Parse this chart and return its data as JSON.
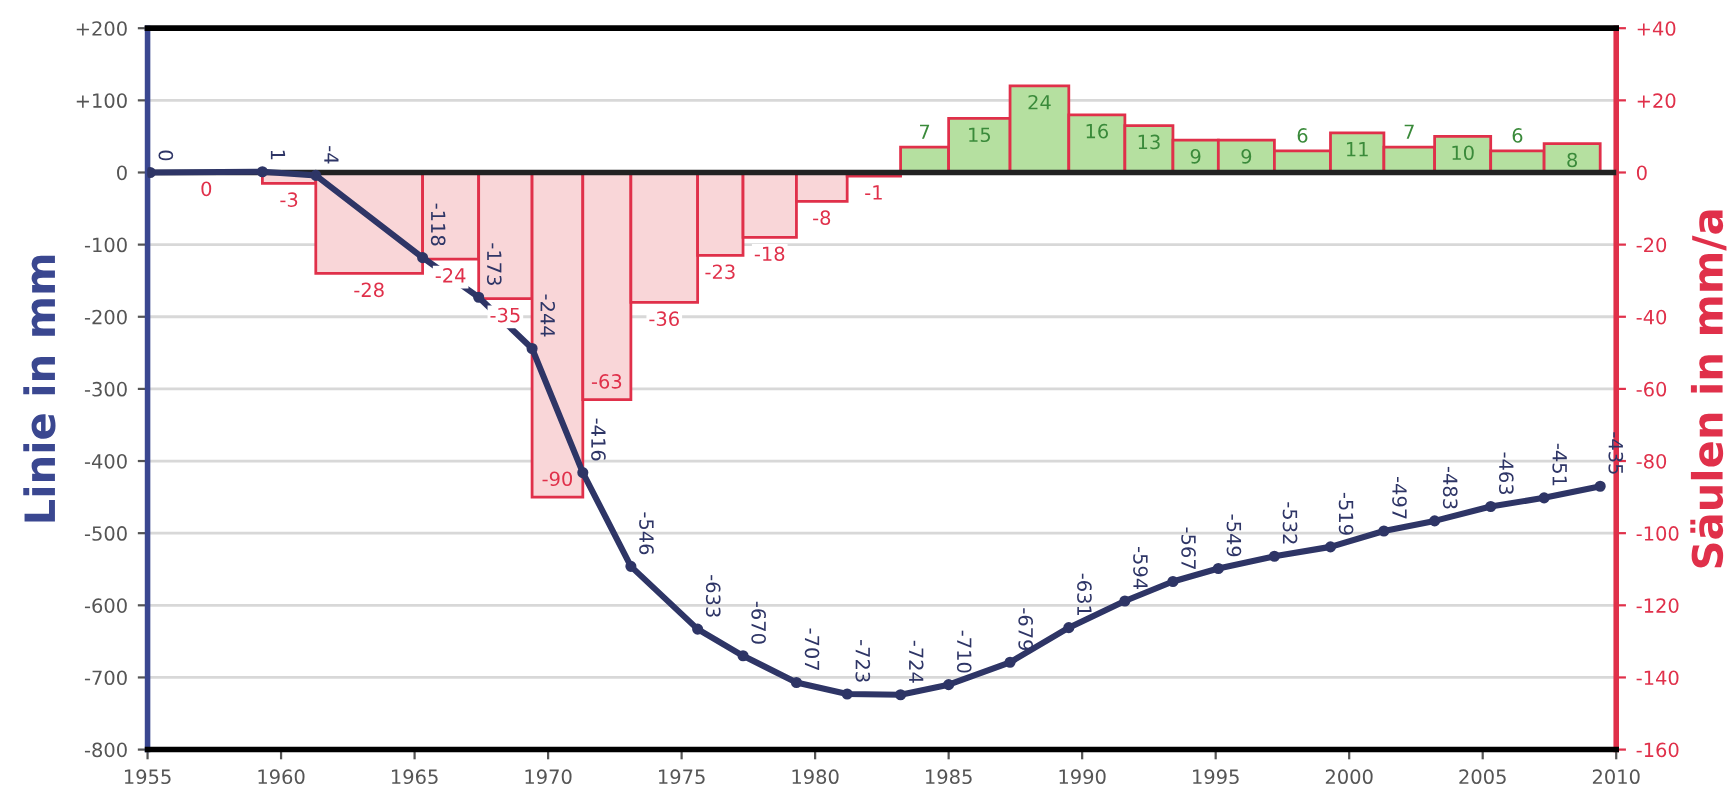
{
  "chart_data": {
    "type": "line",
    "ylabel": "Linie in mm",
    "y2label": "Säulen in mm/a",
    "xlim": [
      1955,
      2010
    ],
    "xticks": [
      1955,
      1960,
      1965,
      1970,
      1975,
      1980,
      1985,
      1990,
      1995,
      2000,
      2005,
      2010
    ],
    "ylim": [
      -800,
      200
    ],
    "yticks": [
      {
        "value": 200,
        "label": "+200"
      },
      {
        "value": 100,
        "label": "+100"
      },
      0,
      -100,
      -200,
      -300,
      -400,
      -500,
      -600,
      -700,
      -800
    ],
    "y2lim": [
      -160,
      40
    ],
    "y2ticks": [
      {
        "value": 40,
        "label": "+40"
      },
      {
        "value": 20,
        "label": "+20"
      },
      0,
      -20,
      -40,
      -60,
      -80,
      -100,
      -120,
      -140,
      -160
    ],
    "grid": true,
    "data_labels": true,
    "series": [
      {
        "type": "histogram",
        "axis": "y2",
        "bins": [
          1955.1,
          1959.3,
          1961.3,
          1965.3,
          1967.4,
          1969.4,
          1971.3,
          1973.1,
          1975.6,
          1977.3,
          1979.3,
          1981.2,
          1983.2,
          1985.0,
          1987.3,
          1989.5,
          1991.6,
          1993.4,
          1995.1,
          1997.2,
          1999.3,
          2001.3,
          2003.2,
          2005.3,
          2007.3,
          2009.4
        ],
        "values": [
          0,
          -3,
          -28,
          -24,
          -35,
          -90,
          -63,
          -36,
          -23,
          -18,
          -8,
          -1,
          7,
          15,
          24,
          16,
          13,
          9,
          9,
          6,
          11,
          7,
          10,
          6,
          8
        ],
        "colors": [
          "#f9d6d8",
          "#f9d6d8",
          "#f9d6d8",
          "#f9d6d8",
          "#f9d6d8",
          "#f9d6d8",
          "#f9d6d8",
          "#f9d6d8",
          "#f9d6d8",
          "#f9d6d8",
          "#f9d6d8",
          "#f9d6d8",
          "#b5e0a0",
          "#b5e0a0",
          "#b5e0a0",
          "#b5e0a0",
          "#b5e0a0",
          "#b5e0a0",
          "#b5e0a0",
          "#b5e0a0",
          "#b5e0a0",
          "#b5e0a0",
          "#b5e0a0",
          "#b5e0a0",
          "#b5e0a0"
        ]
      },
      {
        "color": "#2e3566",
        "marker": "circle",
        "line_style": "solid",
        "x": [
          1955.1,
          1959.3,
          1961.3,
          1965.3,
          1967.4,
          1969.4,
          1971.3,
          1973.1,
          1975.6,
          1977.3,
          1979.3,
          1981.2,
          1983.2,
          1985.0,
          1987.3,
          1989.5,
          1991.6,
          1993.4,
          1995.1,
          1997.2,
          1999.3,
          2001.3,
          2003.2,
          2005.3,
          2007.3,
          2009.4
        ],
        "values": [
          0,
          1,
          -4,
          -118,
          -173,
          -244,
          -416,
          -546,
          -633,
          -670,
          -707,
          -723,
          -724,
          -710,
          -679,
          -631,
          -594,
          -567,
          -549,
          -532,
          -519,
          -497,
          -483,
          -463,
          -451,
          -435
        ]
      }
    ]
  }
}
